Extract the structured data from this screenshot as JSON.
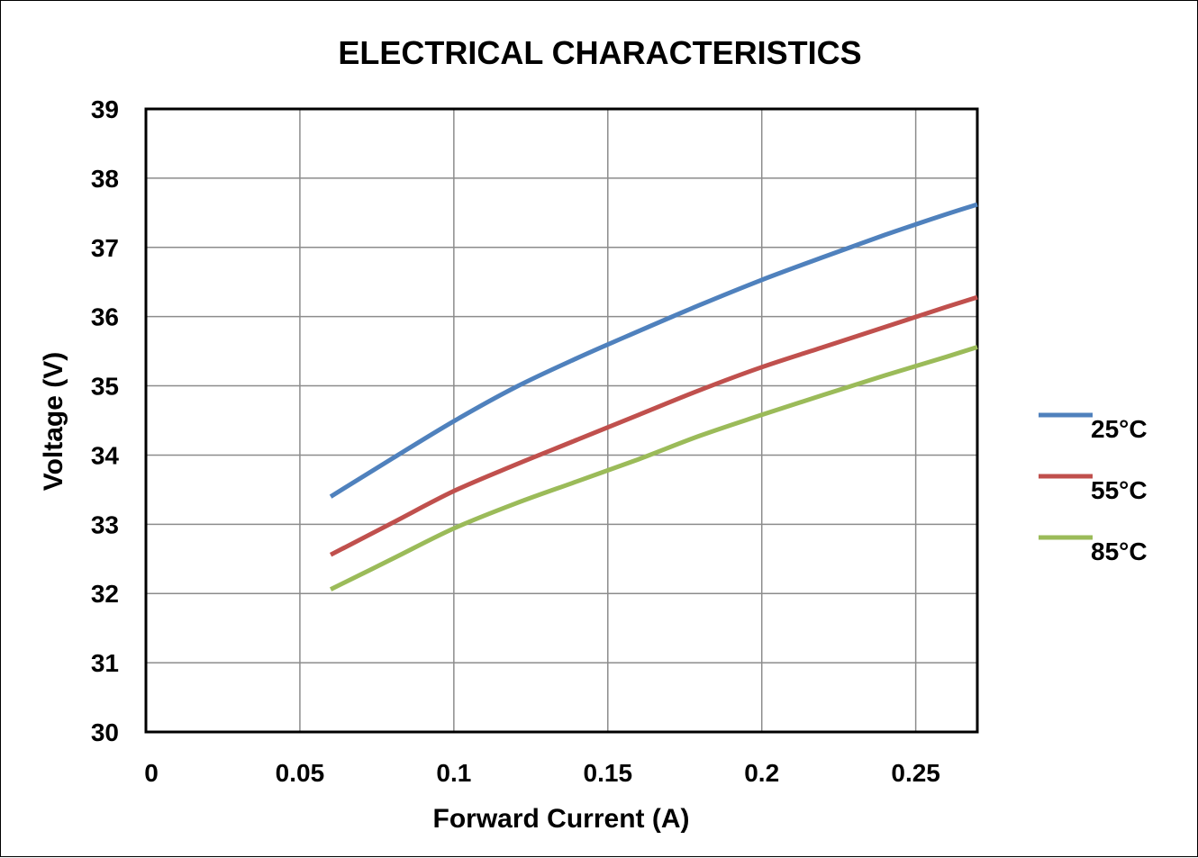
{
  "chart_data": {
    "type": "line",
    "title": "ELECTRICAL CHARACTERISTICS",
    "xlabel": "Forward Current (A)",
    "ylabel": "Voltage (V)",
    "xlim": [
      0,
      0.27
    ],
    "ylim": [
      30,
      39
    ],
    "xticks": [
      0,
      0.05,
      0.1,
      0.15,
      0.2,
      0.25
    ],
    "xtick_labels": [
      "0",
      "0.05",
      "0.1",
      "0.15",
      "0.2",
      "0.25"
    ],
    "yticks": [
      30,
      31,
      32,
      33,
      34,
      35,
      36,
      37,
      38,
      39
    ],
    "ytick_labels": [
      "30",
      "31",
      "32",
      "33",
      "34",
      "35",
      "36",
      "37",
      "38",
      "39"
    ],
    "grid": true,
    "legend_position": "right",
    "series": [
      {
        "name": "25°C",
        "color": "#4f81bd",
        "x": [
          0.06,
          0.08,
          0.1,
          0.12,
          0.14,
          0.16,
          0.18,
          0.2,
          0.22,
          0.24,
          0.26,
          0.27
        ],
        "y": [
          33.4,
          33.95,
          34.49,
          34.98,
          35.4,
          35.79,
          36.17,
          36.53,
          36.86,
          37.18,
          37.48,
          37.62
        ]
      },
      {
        "name": "55°C",
        "color": "#c0504d",
        "x": [
          0.06,
          0.08,
          0.1,
          0.12,
          0.14,
          0.16,
          0.18,
          0.2,
          0.22,
          0.24,
          0.26,
          0.27
        ],
        "y": [
          32.56,
          33.02,
          33.48,
          33.86,
          34.22,
          34.58,
          34.94,
          35.27,
          35.56,
          35.85,
          36.14,
          36.28
        ]
      },
      {
        "name": "85°C",
        "color": "#9bbb59",
        "x": [
          0.06,
          0.08,
          0.1,
          0.12,
          0.14,
          0.16,
          0.18,
          0.2,
          0.22,
          0.24,
          0.26,
          0.27
        ],
        "y": [
          32.06,
          32.5,
          32.94,
          33.3,
          33.62,
          33.94,
          34.28,
          34.58,
          34.87,
          35.15,
          35.42,
          35.56
        ]
      }
    ]
  }
}
